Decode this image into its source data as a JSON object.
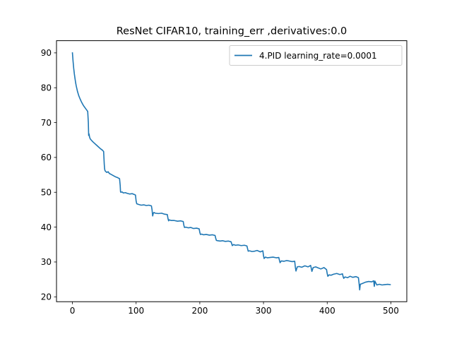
{
  "chart_data": {
    "type": "line",
    "title": "ResNet CIFAR10, training_err ,derivatives:0.0",
    "xlabel": "",
    "ylabel": "",
    "xlim": [
      -25,
      525
    ],
    "ylim": [
      18.6,
      93.5
    ],
    "xticks": [
      0,
      100,
      200,
      300,
      400,
      500
    ],
    "yticks": [
      20,
      30,
      40,
      50,
      60,
      70,
      80,
      90
    ],
    "grid": false,
    "legend_position": "top-right",
    "series": [
      {
        "name": "4.PID learning_rate=0.0001",
        "color": "#1f77b4",
        "x": [
          0,
          1,
          2,
          3,
          4,
          5,
          6,
          8,
          10,
          12,
          14,
          16,
          18,
          20,
          22,
          24,
          25,
          25.5,
          26,
          27,
          28,
          30,
          32,
          35,
          38,
          41,
          44,
          47,
          49,
          50,
          50.5,
          51,
          52,
          54,
          56,
          58,
          60,
          62,
          65,
          68,
          71,
          74,
          75,
          75.5,
          76,
          78,
          80,
          83,
          86,
          90,
          94,
          98,
          99,
          100,
          101,
          104,
          108,
          112,
          116,
          120,
          124,
          125,
          126,
          127,
          128,
          130,
          135,
          140,
          145,
          149,
          150,
          151,
          152,
          155,
          160,
          165,
          170,
          174,
          175,
          176,
          178,
          182,
          186,
          190,
          195,
          199,
          200,
          201,
          203,
          206,
          210,
          215,
          220,
          224,
          225,
          226,
          228,
          232,
          236,
          240,
          245,
          249,
          250,
          251,
          253,
          256,
          260,
          265,
          270,
          274,
          275,
          276,
          278,
          282,
          286,
          290,
          295,
          299,
          300,
          301,
          303,
          306,
          310,
          315,
          320,
          324,
          325,
          326,
          328,
          332,
          336,
          340,
          345,
          349,
          350,
          351,
          353,
          356,
          360,
          365,
          370,
          374,
          375,
          376,
          378,
          382,
          386,
          390,
          395,
          399,
          400,
          401,
          403,
          406,
          410,
          415,
          420,
          424,
          425,
          426,
          428,
          432,
          436,
          440,
          445,
          449,
          450,
          451,
          452,
          455,
          460,
          465,
          470,
          473,
          474,
          475,
          476,
          478,
          482,
          486,
          490,
          495,
          499
        ],
        "y": [
          90,
          87.6,
          85.6,
          84.0,
          82.7,
          81.5,
          80.5,
          78.9,
          77.7,
          76.8,
          76.0,
          75.3,
          74.7,
          74.2,
          73.7,
          73.2,
          70,
          66.3,
          66.8,
          65.8,
          65.3,
          64.9,
          64.5,
          64.0,
          63.5,
          63.0,
          62.5,
          62.1,
          61.7,
          58,
          56.8,
          56.3,
          56.0,
          55.7,
          55.9,
          55.4,
          55.2,
          55.0,
          54.7,
          54.4,
          54.2,
          53.9,
          52,
          50.2,
          50.0,
          50.1,
          49.8,
          49.9,
          49.7,
          49.5,
          49.6,
          49.3,
          49.2,
          47.5,
          46.7,
          46.5,
          46.3,
          46.4,
          46.2,
          46.3,
          46.1,
          45,
          43.2,
          44.0,
          44.2,
          44.0,
          43.9,
          44.0,
          43.7,
          43.6,
          42.5,
          41.8,
          42.1,
          41.9,
          41.9,
          41.7,
          41.8,
          41.6,
          40.5,
          39.9,
          40.0,
          39.8,
          39.9,
          39.6,
          39.7,
          39.5,
          38.5,
          37.9,
          38.0,
          37.8,
          37.9,
          37.7,
          37.8,
          37.6,
          36.8,
          36.2,
          36.1,
          36.0,
          36.1,
          35.9,
          36.0,
          35.8,
          35.3,
          34.7,
          35.0,
          34.8,
          34.9,
          34.7,
          34.8,
          34.6,
          33.8,
          33.1,
          33.2,
          33.0,
          33.1,
          33.3,
          32.9,
          33.2,
          31.8,
          31.0,
          31.4,
          31.2,
          31.3,
          31.4,
          31.2,
          31.3,
          30.5,
          29.8,
          30.3,
          30.2,
          30.4,
          30.3,
          30.1,
          30.2,
          28.5,
          27.4,
          28.6,
          28.7,
          28.5,
          28.9,
          28.6,
          29.0,
          28.2,
          27.3,
          28.4,
          28.6,
          28.3,
          28.0,
          28.4,
          27.8,
          26.7,
          25.9,
          26.3,
          26.2,
          26.5,
          26.7,
          26.4,
          26.6,
          25.8,
          25.3,
          25.7,
          25.5,
          25.9,
          25.6,
          25.8,
          25.5,
          24.0,
          22.0,
          23.6,
          23.8,
          24.2,
          24.4,
          24.3,
          24.6,
          23.0,
          24.5,
          24.1,
          23.4,
          23.6,
          23.4,
          23.5,
          23.6,
          23.5
        ]
      }
    ]
  }
}
